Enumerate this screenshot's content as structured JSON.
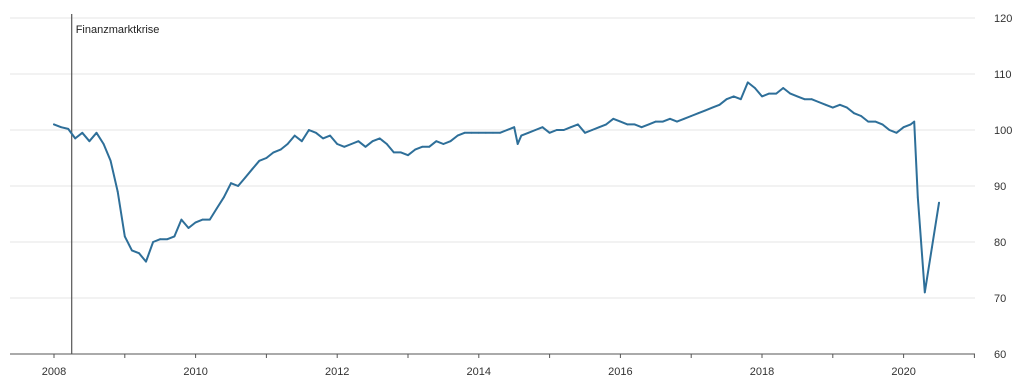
{
  "chart_data": {
    "type": "line",
    "title": "",
    "xlabel": "",
    "ylabel": "",
    "ylim": [
      60,
      120
    ],
    "xlim": [
      2007.85,
      2021.0
    ],
    "y_ticks": [
      60,
      70,
      80,
      90,
      100,
      110,
      120
    ],
    "x_ticks": [
      2008,
      2010,
      2012,
      2014,
      2016,
      2018,
      2020
    ],
    "y_axis_position": "right",
    "grid": "horizontal",
    "colors": {
      "line": "#2e6f99",
      "grid": "#e6e6e6",
      "axis": "#555555",
      "annotation": "#555555"
    },
    "annotations": [
      {
        "x": 2008.25,
        "label": "Finanzmarktkrise"
      }
    ],
    "series": [
      {
        "x": [
          2008.0,
          2008.1,
          2008.2,
          2008.3,
          2008.4,
          2008.5,
          2008.6,
          2008.7,
          2008.8,
          2008.9,
          2009.0,
          2009.1,
          2009.2,
          2009.3,
          2009.4,
          2009.5,
          2009.6,
          2009.7,
          2009.8,
          2009.9,
          2010.0,
          2010.1,
          2010.2,
          2010.3,
          2010.4,
          2010.5,
          2010.6,
          2010.7,
          2010.8,
          2010.9,
          2011.0,
          2011.1,
          2011.2,
          2011.3,
          2011.4,
          2011.5,
          2011.6,
          2011.7,
          2011.8,
          2011.9,
          2012.0,
          2012.1,
          2012.2,
          2012.3,
          2012.4,
          2012.5,
          2012.6,
          2012.7,
          2012.8,
          2012.9,
          2013.0,
          2013.1,
          2013.2,
          2013.3,
          2013.4,
          2013.5,
          2013.6,
          2013.7,
          2013.8,
          2013.9,
          2014.0,
          2014.1,
          2014.2,
          2014.3,
          2014.4,
          2014.5,
          2014.55,
          2014.6,
          2014.7,
          2014.8,
          2014.9,
          2015.0,
          2015.1,
          2015.2,
          2015.3,
          2015.4,
          2015.5,
          2015.6,
          2015.7,
          2015.8,
          2015.9,
          2016.0,
          2016.1,
          2016.2,
          2016.3,
          2016.4,
          2016.5,
          2016.6,
          2016.7,
          2016.8,
          2016.9,
          2017.0,
          2017.1,
          2017.2,
          2017.3,
          2017.4,
          2017.5,
          2017.6,
          2017.7,
          2017.8,
          2017.9,
          2018.0,
          2018.1,
          2018.2,
          2018.3,
          2018.4,
          2018.5,
          2018.6,
          2018.7,
          2018.8,
          2018.9,
          2019.0,
          2019.1,
          2019.2,
          2019.3,
          2019.4,
          2019.5,
          2019.6,
          2019.7,
          2019.8,
          2019.9,
          2020.0,
          2020.1,
          2020.15,
          2020.2,
          2020.3,
          2020.4,
          2020.5
        ],
        "values": [
          101,
          100.5,
          100.2,
          98.5,
          99.5,
          98,
          99.5,
          97.5,
          94.5,
          89,
          81,
          78.5,
          78,
          76.5,
          80,
          80.5,
          80.5,
          81,
          84,
          82.5,
          83.5,
          84,
          84,
          86,
          88,
          90.5,
          90,
          91.5,
          93,
          94.5,
          95,
          96,
          96.5,
          97.5,
          99,
          98,
          100,
          99.5,
          98.5,
          99,
          97.5,
          97,
          97.5,
          98,
          97,
          98,
          98.5,
          97.5,
          96,
          96,
          95.5,
          96.5,
          97,
          97,
          98,
          97.5,
          98,
          99,
          99.5,
          99.5,
          99.5,
          99.5,
          99.5,
          99.5,
          100,
          100.5,
          97.5,
          99,
          99.5,
          100,
          100.5,
          99.5,
          100,
          100,
          100.5,
          101,
          99.5,
          100,
          100.5,
          101,
          102,
          101.5,
          101,
          101,
          100.5,
          101,
          101.5,
          101.5,
          102,
          101.5,
          102,
          102.5,
          103,
          103.5,
          104,
          104.5,
          105.5,
          106,
          105.5,
          108.5,
          107.5,
          106,
          106.5,
          106.5,
          107.5,
          106.5,
          106,
          105.5,
          105.5,
          105,
          104.5,
          104,
          104.5,
          104,
          103,
          102.5,
          101.5,
          101.5,
          101,
          100,
          99.5,
          100.5,
          101,
          101.5,
          88,
          71,
          79,
          87
        ]
      }
    ]
  }
}
